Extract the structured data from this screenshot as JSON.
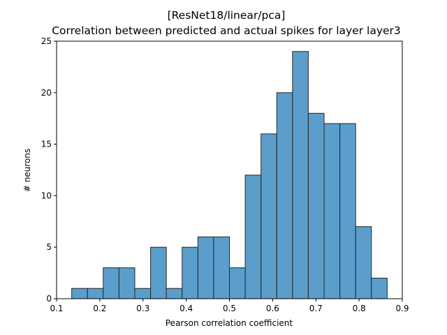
{
  "chart_data": {
    "type": "bar",
    "subtype": "histogram",
    "title": "[ResNet18/linear/pca]",
    "subtitle": "Correlation between predicted and actual spikes for layer layer3",
    "xlabel": "Pearson correlation coefficient",
    "ylabel": "# neurons",
    "xlim": [
      0.1,
      0.9
    ],
    "ylim": [
      0,
      25
    ],
    "xticks": [
      0.1,
      0.2,
      0.3,
      0.4,
      0.5,
      0.6,
      0.7,
      0.8,
      0.9
    ],
    "xtick_labels": [
      "0.1",
      "0.2",
      "0.3",
      "0.4",
      "0.5",
      "0.6",
      "0.7",
      "0.8",
      "0.9"
    ],
    "yticks": [
      0,
      5,
      10,
      15,
      20,
      25
    ],
    "ytick_labels": [
      "0",
      "5",
      "10",
      "15",
      "20",
      "25"
    ],
    "bin_edges": [
      0.135,
      0.1715,
      0.208,
      0.2445,
      0.281,
      0.3175,
      0.354,
      0.3905,
      0.427,
      0.4635,
      0.5,
      0.5365,
      0.573,
      0.6095,
      0.646,
      0.6825,
      0.719,
      0.7555,
      0.792,
      0.8285,
      0.865
    ],
    "values": [
      1,
      1,
      3,
      3,
      1,
      5,
      1,
      5,
      6,
      6,
      3,
      12,
      16,
      20,
      24,
      18,
      17,
      17,
      7,
      2
    ],
    "bar_color": "#5b9ecb",
    "edge_color": "#262626",
    "grid": false
  }
}
